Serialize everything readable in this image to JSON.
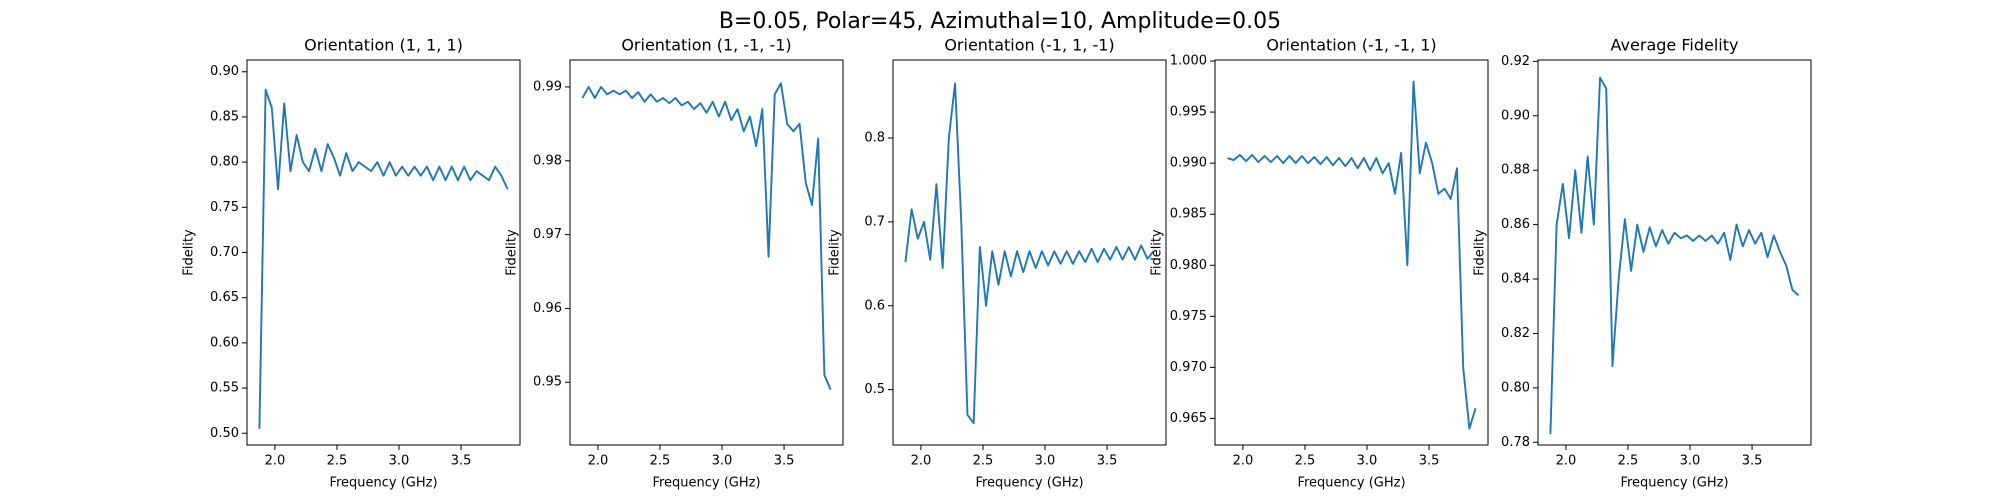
{
  "title": "B=0.05, Polar=45, Azimuthal=10, Amplitude=0.05",
  "chart_data": [
    {
      "type": "line",
      "title": "Orientation (1, 1, 1)",
      "xlabel": "Frequency (GHz)",
      "ylabel": "Fidelity",
      "color": "#1f77b4",
      "x": [
        1.875,
        1.925,
        1.975,
        2.025,
        2.075,
        2.125,
        2.175,
        2.225,
        2.275,
        2.325,
        2.375,
        2.425,
        2.475,
        2.525,
        2.575,
        2.625,
        2.675,
        2.725,
        2.775,
        2.825,
        2.875,
        2.925,
        2.975,
        3.025,
        3.075,
        3.125,
        3.175,
        3.225,
        3.275,
        3.325,
        3.375,
        3.425,
        3.475,
        3.525,
        3.575,
        3.625,
        3.675,
        3.725,
        3.775,
        3.825,
        3.875
      ],
      "values": [
        0.505,
        0.88,
        0.86,
        0.77,
        0.865,
        0.79,
        0.83,
        0.8,
        0.79,
        0.815,
        0.79,
        0.82,
        0.805,
        0.785,
        0.81,
        0.79,
        0.8,
        0.795,
        0.79,
        0.8,
        0.785,
        0.8,
        0.785,
        0.795,
        0.785,
        0.795,
        0.785,
        0.795,
        0.78,
        0.795,
        0.78,
        0.795,
        0.78,
        0.795,
        0.78,
        0.79,
        0.785,
        0.78,
        0.795,
        0.785,
        0.77
      ],
      "xlim": [
        1.775,
        3.975
      ],
      "xticks": [
        {
          "value": 2,
          "label": "2.0"
        },
        2.5,
        {
          "value": 3,
          "label": "3.0"
        },
        3.5
      ],
      "ylim": [
        0.487,
        0.913
      ],
      "yticks": [
        {
          "value": 0.5,
          "label": "0.50"
        },
        0.55,
        {
          "value": 0.6,
          "label": "0.60"
        },
        0.65,
        {
          "value": 0.7,
          "label": "0.70"
        },
        0.75,
        {
          "value": 0.8,
          "label": "0.80"
        },
        0.85,
        {
          "value": 0.9,
          "label": "0.90"
        }
      ]
    },
    {
      "type": "line",
      "title": "Orientation (1, -1, -1)",
      "xlabel": "Frequency (GHz)",
      "ylabel": "Fidelity",
      "color": "#1f77b4",
      "x": [
        1.875,
        1.925,
        1.975,
        2.025,
        2.075,
        2.125,
        2.175,
        2.225,
        2.275,
        2.325,
        2.375,
        2.425,
        2.475,
        2.525,
        2.575,
        2.625,
        2.675,
        2.725,
        2.775,
        2.825,
        2.875,
        2.925,
        2.975,
        3.025,
        3.075,
        3.125,
        3.175,
        3.225,
        3.275,
        3.325,
        3.375,
        3.425,
        3.475,
        3.525,
        3.575,
        3.625,
        3.675,
        3.725,
        3.775,
        3.825,
        3.875
      ],
      "values": [
        0.9885,
        0.99,
        0.9885,
        0.99,
        0.989,
        0.9895,
        0.989,
        0.9895,
        0.9885,
        0.9893,
        0.988,
        0.989,
        0.988,
        0.9885,
        0.9878,
        0.9885,
        0.9875,
        0.988,
        0.987,
        0.9878,
        0.9865,
        0.988,
        0.986,
        0.988,
        0.9855,
        0.987,
        0.984,
        0.986,
        0.982,
        0.987,
        0.967,
        0.989,
        0.9905,
        0.985,
        0.984,
        0.985,
        0.977,
        0.974,
        0.983,
        0.951,
        0.949
      ],
      "xlim": [
        1.775,
        3.975
      ],
      "xticks": [
        {
          "value": 2,
          "label": "2.0"
        },
        2.5,
        {
          "value": 3,
          "label": "3.0"
        },
        3.5
      ],
      "ylim": [
        0.9415,
        0.99365
      ],
      "yticks": [
        0.95,
        0.96,
        0.97,
        0.98,
        0.99
      ]
    },
    {
      "type": "line",
      "title": "Orientation (-1, 1, -1)",
      "xlabel": "Frequency (GHz)",
      "ylabel": "Fidelity",
      "color": "#1f77b4",
      "x": [
        1.875,
        1.925,
        1.975,
        2.025,
        2.075,
        2.125,
        2.175,
        2.225,
        2.275,
        2.325,
        2.375,
        2.425,
        2.475,
        2.525,
        2.575,
        2.625,
        2.675,
        2.725,
        2.775,
        2.825,
        2.875,
        2.925,
        2.975,
        3.025,
        3.075,
        3.125,
        3.175,
        3.225,
        3.275,
        3.325,
        3.375,
        3.425,
        3.475,
        3.525,
        3.575,
        3.625,
        3.675,
        3.725,
        3.775,
        3.825,
        3.875
      ],
      "values": [
        0.652,
        0.715,
        0.68,
        0.7,
        0.655,
        0.745,
        0.645,
        0.8,
        0.865,
        0.7,
        0.47,
        0.46,
        0.67,
        0.6,
        0.665,
        0.625,
        0.665,
        0.635,
        0.665,
        0.64,
        0.665,
        0.645,
        0.665,
        0.648,
        0.665,
        0.65,
        0.665,
        0.65,
        0.665,
        0.652,
        0.668,
        0.652,
        0.668,
        0.655,
        0.67,
        0.655,
        0.67,
        0.655,
        0.672,
        0.656,
        0.665
      ],
      "xlim": [
        1.775,
        3.975
      ],
      "xticks": [
        {
          "value": 2,
          "label": "2.0"
        },
        2.5,
        {
          "value": 3,
          "label": "3.0"
        },
        3.5
      ],
      "ylim": [
        0.434,
        0.893
      ],
      "yticks": [
        0.5,
        0.6,
        0.7,
        0.8
      ]
    },
    {
      "type": "line",
      "title": "Orientation (-1, -1, 1)",
      "xlabel": "Frequency (GHz)",
      "ylabel": "Fidelity",
      "color": "#1f77b4",
      "x": [
        1.875,
        1.925,
        1.975,
        2.025,
        2.075,
        2.125,
        2.175,
        2.225,
        2.275,
        2.325,
        2.375,
        2.425,
        2.475,
        2.525,
        2.575,
        2.625,
        2.675,
        2.725,
        2.775,
        2.825,
        2.875,
        2.925,
        2.975,
        3.025,
        3.075,
        3.125,
        3.175,
        3.225,
        3.275,
        3.325,
        3.375,
        3.425,
        3.475,
        3.525,
        3.575,
        3.625,
        3.675,
        3.725,
        3.775,
        3.825,
        3.875
      ],
      "values": [
        0.9905,
        0.9903,
        0.9908,
        0.9902,
        0.9908,
        0.9901,
        0.9907,
        0.9901,
        0.9907,
        0.99,
        0.9907,
        0.99,
        0.9907,
        0.99,
        0.9906,
        0.9899,
        0.9906,
        0.9898,
        0.9905,
        0.9897,
        0.9905,
        0.9895,
        0.9905,
        0.9893,
        0.9905,
        0.989,
        0.99,
        0.987,
        0.991,
        0.98,
        0.998,
        0.989,
        0.992,
        0.99,
        0.987,
        0.9875,
        0.9865,
        0.9895,
        0.97,
        0.964,
        0.966
      ],
      "xlim": [
        1.775,
        3.975
      ],
      "xticks": [
        {
          "value": 2,
          "label": "2.0"
        },
        2.5,
        {
          "value": 3,
          "label": "3.0"
        },
        3.5
      ],
      "ylim": [
        0.9624,
        1.0001
      ],
      "yticks": [
        0.965,
        {
          "value": 0.97,
          "label": "0.970"
        },
        0.975,
        {
          "value": 0.98,
          "label": "0.980"
        },
        0.985,
        {
          "value": 0.99,
          "label": "0.990"
        },
        0.995,
        {
          "value": 1,
          "label": "1.000"
        }
      ]
    },
    {
      "type": "line",
      "title": "Average Fidelity",
      "xlabel": "Frequency (GHz)",
      "ylabel": "Fidelity",
      "color": "#1f77b4",
      "x": [
        1.875,
        1.925,
        1.975,
        2.025,
        2.075,
        2.125,
        2.175,
        2.225,
        2.275,
        2.325,
        2.375,
        2.425,
        2.475,
        2.525,
        2.575,
        2.625,
        2.675,
        2.725,
        2.775,
        2.825,
        2.875,
        2.925,
        2.975,
        3.025,
        3.075,
        3.125,
        3.175,
        3.225,
        3.275,
        3.325,
        3.375,
        3.425,
        3.475,
        3.525,
        3.575,
        3.625,
        3.675,
        3.725,
        3.775,
        3.825,
        3.875
      ],
      "values": [
        0.783,
        0.86,
        0.875,
        0.855,
        0.88,
        0.857,
        0.885,
        0.86,
        0.914,
        0.91,
        0.808,
        0.84,
        0.862,
        0.843,
        0.86,
        0.85,
        0.859,
        0.852,
        0.858,
        0.853,
        0.857,
        0.855,
        0.856,
        0.854,
        0.856,
        0.854,
        0.856,
        0.853,
        0.857,
        0.847,
        0.86,
        0.852,
        0.858,
        0.853,
        0.857,
        0.848,
        0.856,
        0.85,
        0.845,
        0.836,
        0.834
      ],
      "xlim": [
        1.775,
        3.975
      ],
      "xticks": [
        {
          "value": 2,
          "label": "2.0"
        },
        2.5,
        {
          "value": 3,
          "label": "3.0"
        },
        3.5
      ],
      "ylim": [
        0.779,
        0.9205
      ],
      "yticks": [
        0.78,
        {
          "value": 0.8,
          "label": "0.80"
        },
        0.82,
        0.84,
        0.86,
        0.88,
        {
          "value": 0.9,
          "label": "0.90"
        },
        0.92
      ]
    }
  ]
}
